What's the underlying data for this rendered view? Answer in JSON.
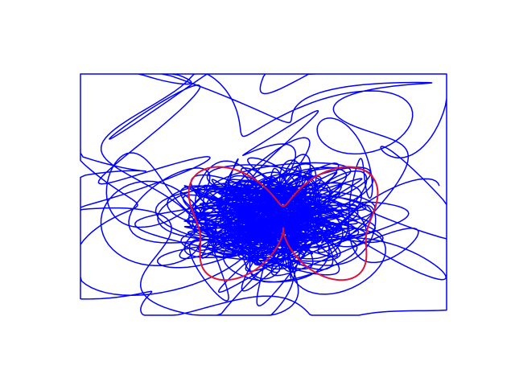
{
  "chart_data": {
    "type": "line",
    "grid": false,
    "axes_visible": false,
    "legend": "none",
    "xlim": [
      -1.6,
      1.6
    ],
    "ylim": [
      -1.2,
      1.2
    ],
    "series": [
      {
        "role": "tangled-trajectory",
        "color": "#0000ff",
        "description_of_shape": "dense chaotic curve concentrated at center with wide outer loops"
      },
      {
        "role": "butterfly-curve",
        "color": "#dc143c",
        "equation_family": "polar butterfly"
      }
    ]
  },
  "colors": {
    "background": "#ffffff",
    "trajectory": "#0000ff",
    "butterfly": "#dc143c"
  }
}
